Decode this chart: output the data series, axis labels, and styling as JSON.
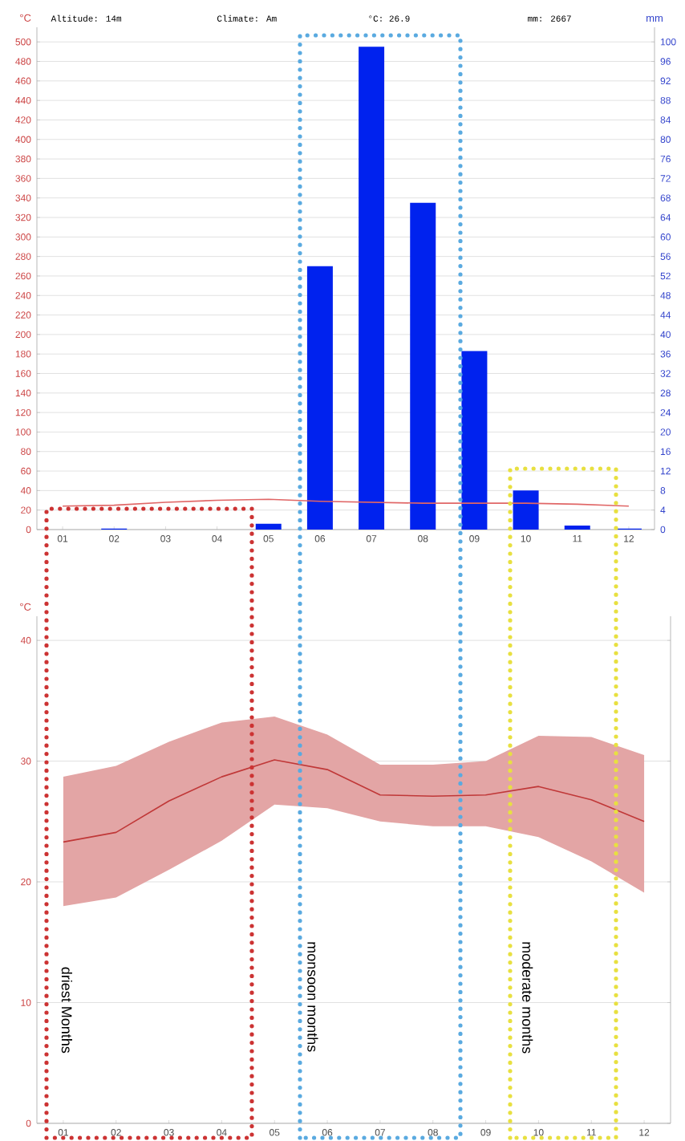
{
  "chart_data": [
    {
      "type": "bar",
      "ylabel": "°C",
      "y2label": "mm",
      "annotations": [
        "Altitude: 14m",
        "Climate: Am",
        "°C: 26.9",
        "mm: 2667"
      ],
      "categories": [
        "01",
        "02",
        "03",
        "04",
        "05",
        "06",
        "07",
        "08",
        "09",
        "10",
        "11",
        "12"
      ],
      "series": [
        {
          "type": "bar",
          "color": "#0022ee",
          "values": [
            0,
            1,
            0,
            0,
            6,
            270,
            495,
            335,
            183,
            40,
            4,
            1
          ]
        },
        {
          "type": "line",
          "color": "#e06666",
          "values": [
            24,
            25,
            28,
            30,
            31,
            29,
            28,
            27,
            27,
            27,
            26,
            24
          ]
        }
      ],
      "ylim": [
        0,
        515
      ],
      "yticks": [
        0,
        20,
        40,
        60,
        80,
        100,
        120,
        140,
        160,
        180,
        200,
        220,
        240,
        260,
        280,
        300,
        320,
        340,
        360,
        380,
        400,
        420,
        440,
        460,
        480,
        500
      ],
      "y2lim": [
        0,
        103
      ],
      "y2ticks": [
        0,
        4,
        8,
        12,
        16,
        20,
        24,
        28,
        32,
        36,
        40,
        44,
        48,
        52,
        56,
        60,
        64,
        68,
        72,
        76,
        80,
        84,
        88,
        92,
        96,
        100
      ],
      "grid": "y"
    },
    {
      "type": "line",
      "ylabel": "°C",
      "annotations": [
        "driest Months",
        "monsoon months",
        "moderate  months"
      ],
      "categories": [
        "01",
        "02",
        "03",
        "04",
        "05",
        "06",
        "07",
        "08",
        "09",
        "10",
        "11",
        "12"
      ],
      "series": [
        {
          "color": "#c03838",
          "values": [
            23.3,
            24.1,
            26.7,
            28.7,
            30.1,
            29.3,
            27.2,
            27.1,
            27.2,
            27.9,
            26.8,
            25.0
          ],
          "lower": [
            18.0,
            18.7,
            21.0,
            23.4,
            26.4,
            26.1,
            25.0,
            24.6,
            24.6,
            23.7,
            21.7,
            19.1
          ],
          "upper": [
            28.7,
            29.6,
            31.6,
            33.2,
            33.7,
            32.2,
            29.7,
            29.7,
            30.0,
            32.1,
            32.0,
            30.5
          ]
        }
      ],
      "ylim": [
        0,
        42
      ],
      "yticks": [
        0,
        10,
        20,
        30,
        40
      ],
      "grid": "y"
    }
  ]
}
